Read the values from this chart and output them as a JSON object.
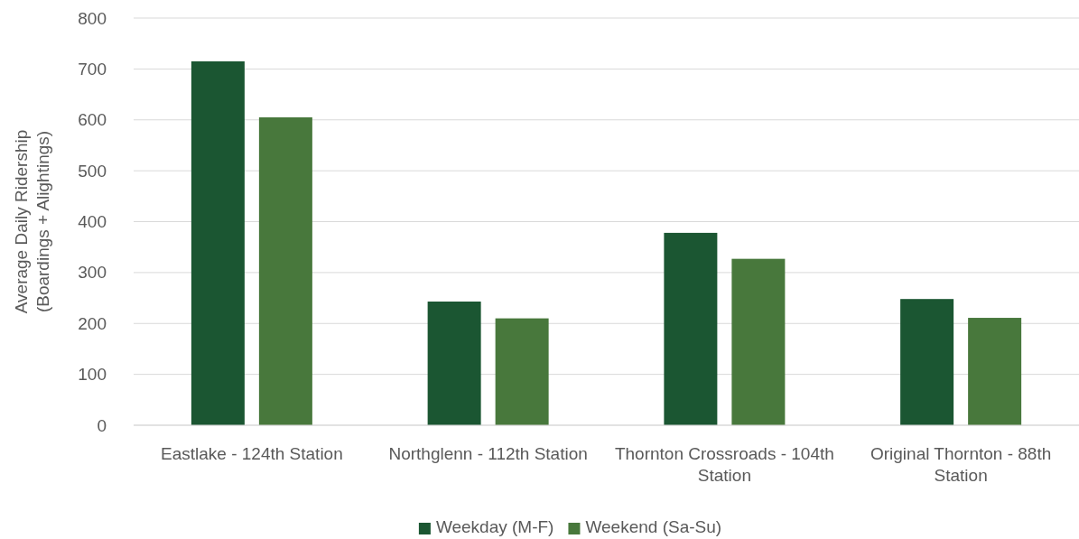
{
  "chart_data": {
    "type": "bar",
    "categories": [
      "Eastlake - 124th Station",
      "Northglenn - 112th Station",
      "Thornton Crossroads - 104th Station",
      "Original Thornton - 88th Station"
    ],
    "series": [
      {
        "name": "Weekday (M-F)",
        "color": "#1b5632",
        "values": [
          715,
          243,
          378,
          248
        ]
      },
      {
        "name": "Weekend (Sa-Su)",
        "color": "#48783c",
        "values": [
          605,
          210,
          327,
          211
        ]
      }
    ],
    "ylabel": "Average Daily Ridership (Boardings + Alightings)",
    "ylim": [
      0,
      800
    ],
    "yticks": [
      0,
      100,
      200,
      300,
      400,
      500,
      600,
      700,
      800
    ],
    "grid": "y",
    "legend": "bottom"
  }
}
